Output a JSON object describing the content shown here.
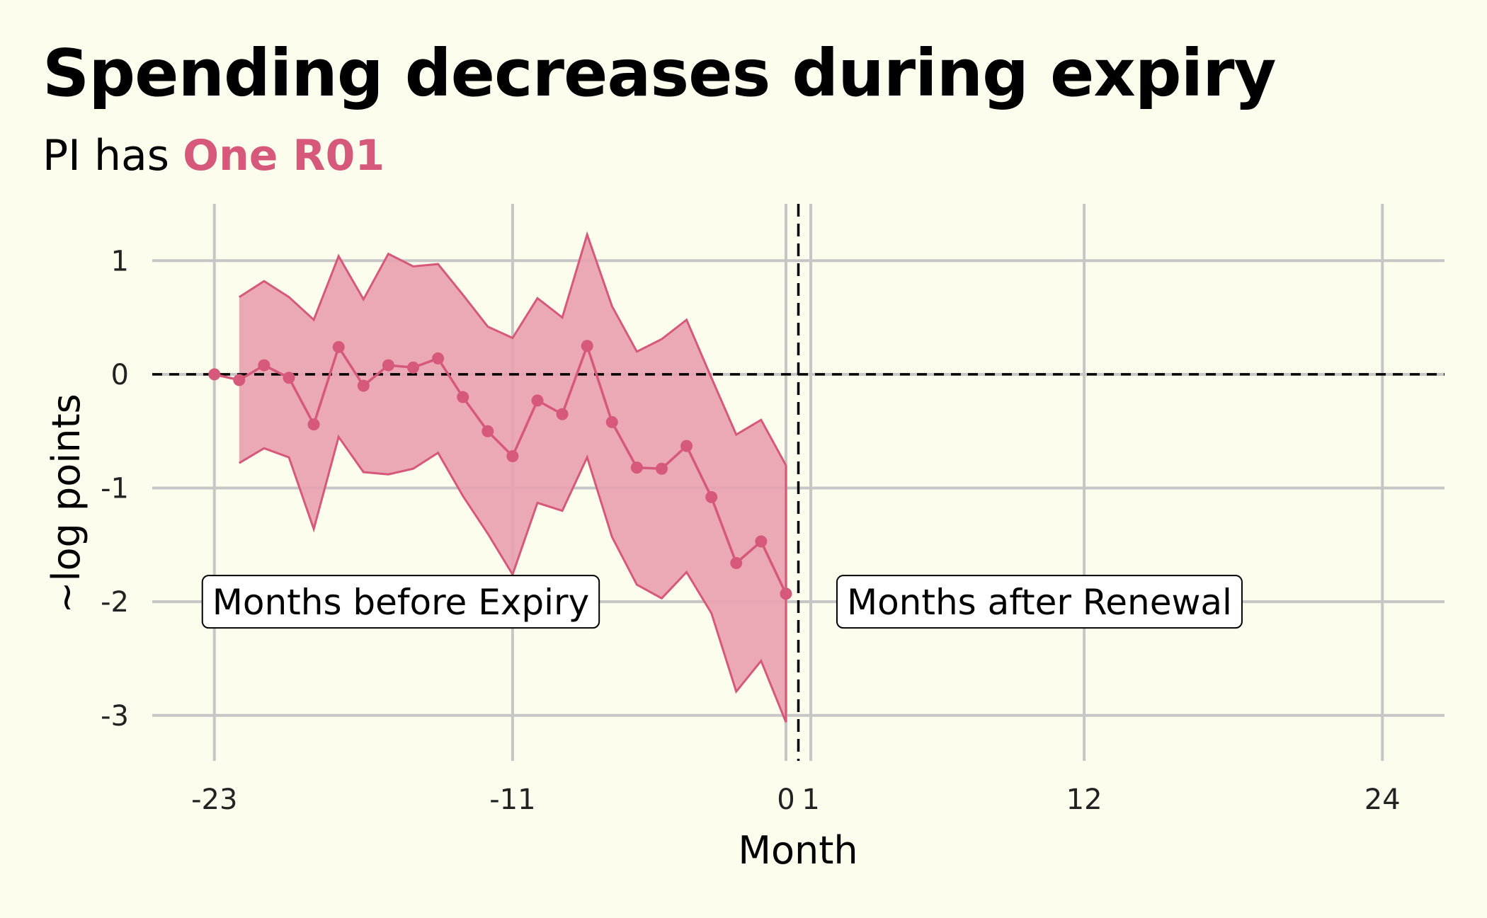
{
  "title": "Spending decreases during expiry",
  "subtitle_prefix": "PI has ",
  "subtitle_highlight": "One R01",
  "colors": {
    "background": "#fcfdec",
    "series": "#d6587a",
    "band": "#e8a0ae",
    "grid": "#c6c6c6"
  },
  "chart_data": {
    "type": "line",
    "xlabel": "Month",
    "ylabel": "~log points",
    "xlim": [
      -25.5,
      26.5
    ],
    "ylim": [
      -3.4,
      1.5
    ],
    "x_ticks": [
      -23,
      -11,
      0,
      1,
      12,
      24
    ],
    "y_ticks": [
      1,
      0,
      -1,
      -2,
      -3
    ],
    "grid": true,
    "reference_lines": {
      "y": 0,
      "x": 0.5
    },
    "annotations": [
      {
        "text": "Months before Expiry",
        "x": -15.5,
        "y": -2.0
      },
      {
        "text": "Months after Renewal",
        "x": 10.2,
        "y": -2.0
      }
    ],
    "series": [
      {
        "x": [
          -23,
          -22,
          -21,
          -20,
          -19,
          -18,
          -17,
          -16,
          -15,
          -14,
          -13,
          -12,
          -11,
          -10,
          -9,
          -8,
          -7,
          -6,
          -5,
          -4,
          -3,
          -2,
          -1,
          0
        ],
        "y": [
          0.0,
          -0.05,
          0.08,
          -0.03,
          -0.44,
          0.24,
          -0.1,
          0.08,
          0.06,
          0.14,
          -0.2,
          -0.5,
          -0.72,
          -0.23,
          -0.35,
          0.25,
          -0.42,
          -0.82,
          -0.83,
          -0.63,
          -1.08,
          -1.66,
          -1.47,
          -1.93
        ],
        "lower": [
          null,
          -0.78,
          -0.65,
          -0.73,
          -1.36,
          -0.55,
          -0.86,
          -0.88,
          -0.83,
          -0.69,
          -1.07,
          -1.4,
          -1.76,
          -1.13,
          -1.2,
          -0.73,
          -1.43,
          -1.85,
          -1.97,
          -1.74,
          -2.1,
          -2.79,
          -2.52,
          -3.06
        ],
        "upper": [
          null,
          0.68,
          0.82,
          0.68,
          0.48,
          1.04,
          0.66,
          1.06,
          0.95,
          0.97,
          0.7,
          0.42,
          0.32,
          0.67,
          0.5,
          1.23,
          0.6,
          0.2,
          0.31,
          0.48,
          -0.03,
          -0.53,
          -0.4,
          -0.8
        ]
      }
    ]
  }
}
